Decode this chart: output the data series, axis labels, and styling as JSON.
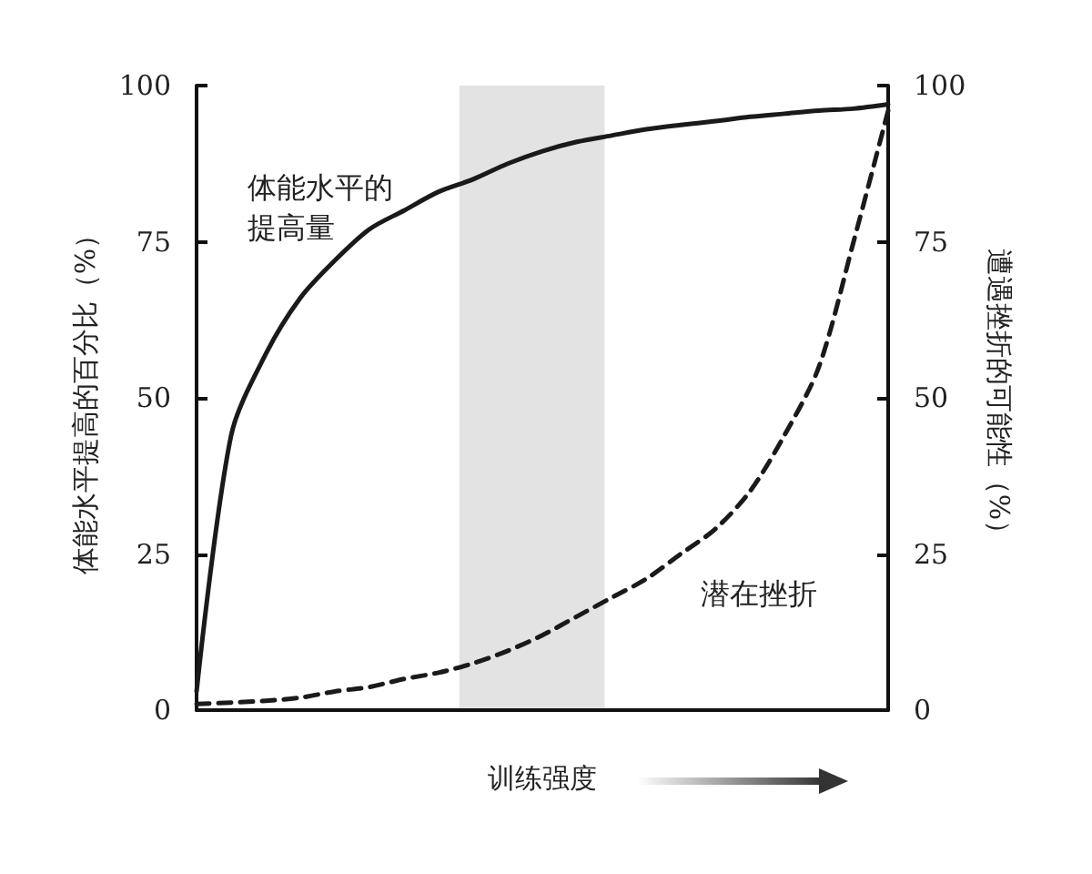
{
  "chart_data": {
    "type": "line",
    "xlabel": "训练强度",
    "ylabel": "体能水平提高的百分比（%）",
    "y2label": "遭遇挫折的可能性（%）",
    "categories": [
      null,
      null,
      null,
      null,
      null,
      null,
      null,
      null,
      null,
      null,
      null,
      null,
      null,
      null,
      null,
      null,
      null,
      null,
      null,
      null,
      null
    ],
    "ylim": [
      0,
      100
    ],
    "yticks": [
      0,
      25,
      50,
      75,
      100
    ],
    "y2lim": [
      0,
      100
    ],
    "y2ticks": [
      0,
      25,
      50,
      75,
      100
    ],
    "tick_labels": "y",
    "grid": false,
    "series": [
      {
        "name": "体能水平的提高量",
        "color": "#1a1a1a",
        "line_style": "solid",
        "values": [
          3,
          44,
          57,
          66,
          72,
          77,
          80,
          83,
          85,
          87.5,
          89.5,
          91,
          92,
          93,
          93.7,
          94.3,
          95,
          95.5,
          96,
          96.3,
          97
        ]
      },
      {
        "name": "潜在挫折",
        "color": "#1a1a1a",
        "line_style": "dashed",
        "values": [
          1,
          1.2,
          1.5,
          2,
          3,
          3.7,
          5,
          6,
          7.5,
          9.5,
          12,
          15,
          18,
          21,
          25,
          29,
          35,
          44,
          55,
          75,
          96
        ]
      }
    ]
  }
}
